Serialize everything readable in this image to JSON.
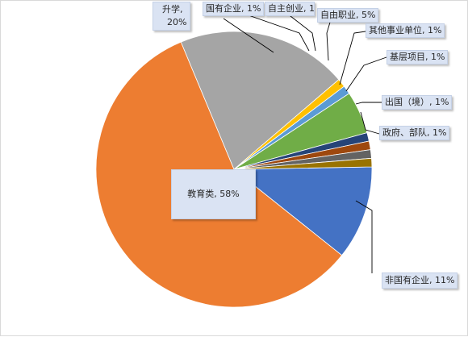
{
  "chart_data": {
    "type": "pie",
    "title": "",
    "slices": [
      {
        "label": "非国有企业",
        "value": 11,
        "color": "#4472c4"
      },
      {
        "label": "教育类",
        "value": 58,
        "color": "#ed7d31"
      },
      {
        "label": "升学",
        "value": 20,
        "color": "#a5a5a5"
      },
      {
        "label": "国有企业",
        "value": 1,
        "color": "#ffc000"
      },
      {
        "label": "自主创业",
        "value": 1,
        "color": "#5b9bd5"
      },
      {
        "label": "自由职业",
        "value": 5,
        "color": "#70ad47"
      },
      {
        "label": "其他事业单位",
        "value": 1,
        "color": "#264478"
      },
      {
        "label": "基层项目",
        "value": 1,
        "color": "#9e480e"
      },
      {
        "label": "出国（境）",
        "value": 1,
        "color": "#636363"
      },
      {
        "label": "政府、部队",
        "value": 1,
        "color": "#997300"
      }
    ],
    "labels": {
      "non_state": "非国有企业, 11%",
      "education": "教育类, 58%",
      "study_name": "升学,",
      "study_pct": "20%",
      "state_owned": "国有企业, 1%",
      "startup": "自主创业, 1%",
      "freelance": "自由职业, 5%",
      "other_public": "其他事业单位, 1%",
      "grassroots": "基层项目, 1%",
      "abroad": "出国（境）, 1%",
      "government": "政府、部队, 1%"
    }
  }
}
